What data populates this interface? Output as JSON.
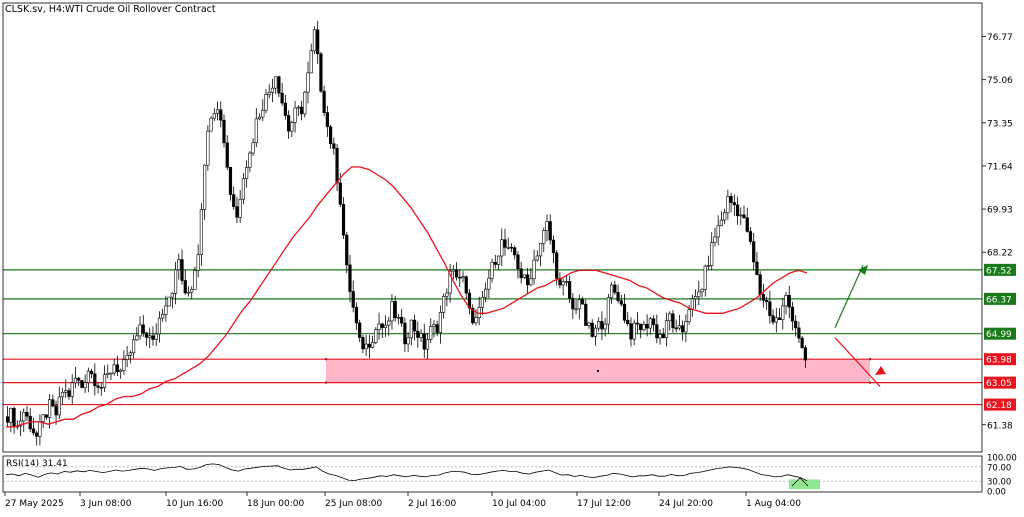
{
  "header": {
    "symbol": "CLSK.sv, H4:",
    "name": "WTI Crude Oil Rollover Contract"
  },
  "colors": {
    "candle": "#000000",
    "ma": "#e8141e",
    "support": "#e8141e",
    "resistance": "#1a7a1a",
    "zone": "#ffb6c8",
    "arrow_up": "#1a7a1a",
    "arrow_down": "#e8141e",
    "rsi": "#000000",
    "rsi_highlight": "#8fe88f"
  },
  "chart_data": {
    "type": "candlestick",
    "ylim": [
      60.3,
      78.1
    ],
    "yticks": [
      "76.77",
      "75.06",
      "73.35",
      "71.64",
      "69.93",
      "68.22",
      "61.38"
    ],
    "xticks": [
      "27 May 2025",
      "3 Jun 08:00",
      "10 Jun 16:00",
      "18 Jun 00:00",
      "25 Jun 08:00",
      "2 Jul 16:00",
      "10 Jul 04:00",
      "17 Jul 12:00",
      "24 Jul 20:00",
      "1 Aug 04:00"
    ],
    "close_path": [
      61.7,
      61.8,
      61.3,
      61.9,
      61.4,
      60.9,
      61.6,
      62.1,
      61.8,
      62.7,
      62.6,
      63.2,
      62.9,
      63.6,
      63.2,
      62.9,
      63.3,
      63.8,
      63.5,
      63.9,
      64.6,
      65.1,
      65.0,
      64.6,
      65.6,
      66.3,
      66.8,
      67.9,
      66.4,
      66.9,
      68.3,
      71.9,
      73.8,
      74.1,
      72.7,
      70.6,
      69.6,
      71.4,
      72.1,
      73.4,
      74.1,
      74.6,
      75.3,
      74.2,
      73.1,
      73.7,
      73.9,
      75.2,
      76.9,
      74.8,
      73.2,
      72.1,
      70.3,
      67.5,
      66.0,
      64.6,
      64.5,
      64.9,
      65.4,
      65.1,
      66.0,
      65.5,
      64.8,
      65.4,
      65.0,
      64.5,
      65.1,
      65.3,
      66.3,
      67.3,
      67.4,
      67.1,
      65.8,
      65.5,
      66.2,
      67.2,
      68.0,
      68.6,
      68.2,
      68.1,
      67.3,
      66.9,
      67.9,
      68.6,
      69.3,
      68.1,
      66.8,
      66.9,
      65.9,
      66.4,
      65.4,
      64.9,
      65.3,
      65.6,
      66.8,
      66.5,
      65.7,
      65.0,
      65.3,
      65.2,
      65.6,
      65.0,
      64.9,
      65.7,
      65.0,
      65.1,
      66.1,
      66.3,
      66.9,
      67.9,
      68.9,
      69.5,
      70.3,
      70.1,
      69.7,
      69.1,
      67.8,
      66.6,
      66.2,
      65.5,
      65.6,
      66.4,
      65.7,
      64.9,
      63.7
    ],
    "ma_path": [
      61.3,
      61.3,
      61.4,
      61.5,
      61.5,
      61.4,
      61.5,
      61.6,
      61.6,
      61.8,
      61.9,
      62.1,
      62.2,
      62.4,
      62.5,
      62.5,
      62.6,
      62.8,
      62.9,
      63.1,
      63.2,
      63.4,
      63.6,
      63.8,
      64.1,
      64.5,
      64.9,
      65.4,
      65.9,
      66.3,
      66.8,
      67.3,
      67.8,
      68.3,
      68.8,
      69.2,
      69.6,
      70.1,
      70.5,
      70.9,
      71.3,
      71.6,
      71.6,
      71.5,
      71.3,
      71.1,
      70.8,
      70.4,
      70.0,
      69.5,
      69.0,
      68.4,
      67.8,
      67.1,
      66.5,
      66.0,
      65.8,
      65.8,
      65.9,
      66.0,
      66.2,
      66.4,
      66.6,
      66.8,
      66.9,
      67.1,
      67.2,
      67.4,
      67.5,
      67.5,
      67.5,
      67.4,
      67.3,
      67.2,
      67.1,
      66.9,
      66.8,
      66.6,
      66.4,
      66.3,
      66.2,
      66.0,
      65.9,
      65.8,
      65.8,
      65.8,
      65.9,
      66.0,
      66.2,
      66.4,
      66.7,
      67.0,
      67.2,
      67.4,
      67.5,
      67.4
    ],
    "levels": [
      {
        "label": "67.52",
        "kind": "resistance",
        "value": 67.52
      },
      {
        "label": "66.37",
        "kind": "resistance",
        "value": 66.37
      },
      {
        "label": "64.99",
        "kind": "resistance",
        "value": 64.99
      },
      {
        "label": "63.98",
        "kind": "support",
        "value": 63.98
      },
      {
        "label": "63.05",
        "kind": "support",
        "value": 63.05
      },
      {
        "label": "62.18",
        "kind": "support",
        "value": 62.18
      }
    ],
    "zone": {
      "from": 63.05,
      "to": 63.98
    },
    "rsi": {
      "label": "RSI(14) 31.41",
      "ticks": [
        "100.00",
        "70.00",
        "30.00",
        "0.00"
      ],
      "ylim": [
        0,
        100
      ],
      "values": [
        48,
        50,
        45,
        52,
        47,
        41,
        49,
        53,
        50,
        57,
        55,
        59,
        56,
        60,
        57,
        54,
        57,
        61,
        58,
        60,
        63,
        66,
        64,
        60,
        65,
        67,
        68,
        71,
        63,
        64,
        68,
        76,
        78,
        76,
        68,
        61,
        58,
        64,
        66,
        69,
        71,
        72,
        73,
        66,
        61,
        63,
        63,
        66,
        70,
        58,
        50,
        46,
        40,
        33,
        32,
        36,
        38,
        41,
        45,
        43,
        48,
        45,
        42,
        46,
        44,
        42,
        46,
        47,
        53,
        57,
        57,
        55,
        49,
        48,
        51,
        55,
        58,
        60,
        57,
        57,
        52,
        50,
        55,
        58,
        61,
        54,
        47,
        48,
        43,
        46,
        42,
        40,
        44,
        46,
        52,
        50,
        46,
        42,
        45,
        45,
        48,
        44,
        44,
        49,
        45,
        46,
        52,
        54,
        57,
        61,
        65,
        67,
        70,
        68,
        66,
        62,
        55,
        48,
        46,
        42,
        43,
        48,
        44,
        40,
        31
      ],
      "levels": [
        70,
        30
      ]
    }
  }
}
